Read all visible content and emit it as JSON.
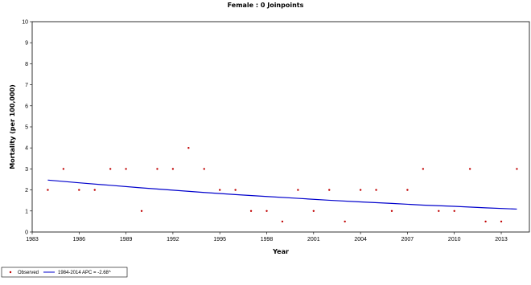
{
  "chart_data": {
    "type": "scatter",
    "title": "Female : 0 Joinpoints",
    "xlabel": "Year",
    "ylabel": "Mortality (per 100,000)",
    "xlim": [
      1983,
      2014.8
    ],
    "ylim": [
      0,
      10
    ],
    "x_ticks": [
      1983,
      1986,
      1989,
      1992,
      1995,
      1998,
      2001,
      2004,
      2007,
      2010,
      2013
    ],
    "y_ticks": [
      0,
      1,
      2,
      3,
      4,
      5,
      6,
      7,
      8,
      9,
      10
    ],
    "grid": false,
    "legend_position": "bottom-left",
    "series": [
      {
        "name": "Observed",
        "kind": "points",
        "color": "#c00000",
        "x": [
          1984,
          1985,
          1986,
          1987,
          1988,
          1989,
          1990,
          1991,
          1992,
          1993,
          1994,
          1995,
          1996,
          1997,
          1998,
          1999,
          2000,
          2001,
          2002,
          2003,
          2004,
          2005,
          2006,
          2007,
          2008,
          2009,
          2010,
          2011,
          2012,
          2013,
          2014
        ],
        "y": [
          2,
          3,
          2,
          2,
          3,
          3,
          1,
          3,
          3,
          4,
          3,
          2,
          2,
          1,
          1,
          0.5,
          2,
          1,
          2,
          0.5,
          2,
          2,
          1,
          2,
          3,
          1,
          1,
          3,
          0.5,
          0.5,
          3
        ]
      },
      {
        "name": "1984-2014 APC = -2.68^",
        "kind": "line",
        "color": "#0000cc",
        "x": [
          1984,
          1986,
          1988,
          1990,
          1992,
          1994,
          1996,
          1998,
          2000,
          2002,
          2004,
          2006,
          2008,
          2010,
          2012,
          2014
        ],
        "y": [
          2.47,
          2.34,
          2.22,
          2.1,
          1.99,
          1.88,
          1.78,
          1.69,
          1.6,
          1.51,
          1.43,
          1.36,
          1.28,
          1.22,
          1.15,
          1.09
        ]
      }
    ]
  }
}
